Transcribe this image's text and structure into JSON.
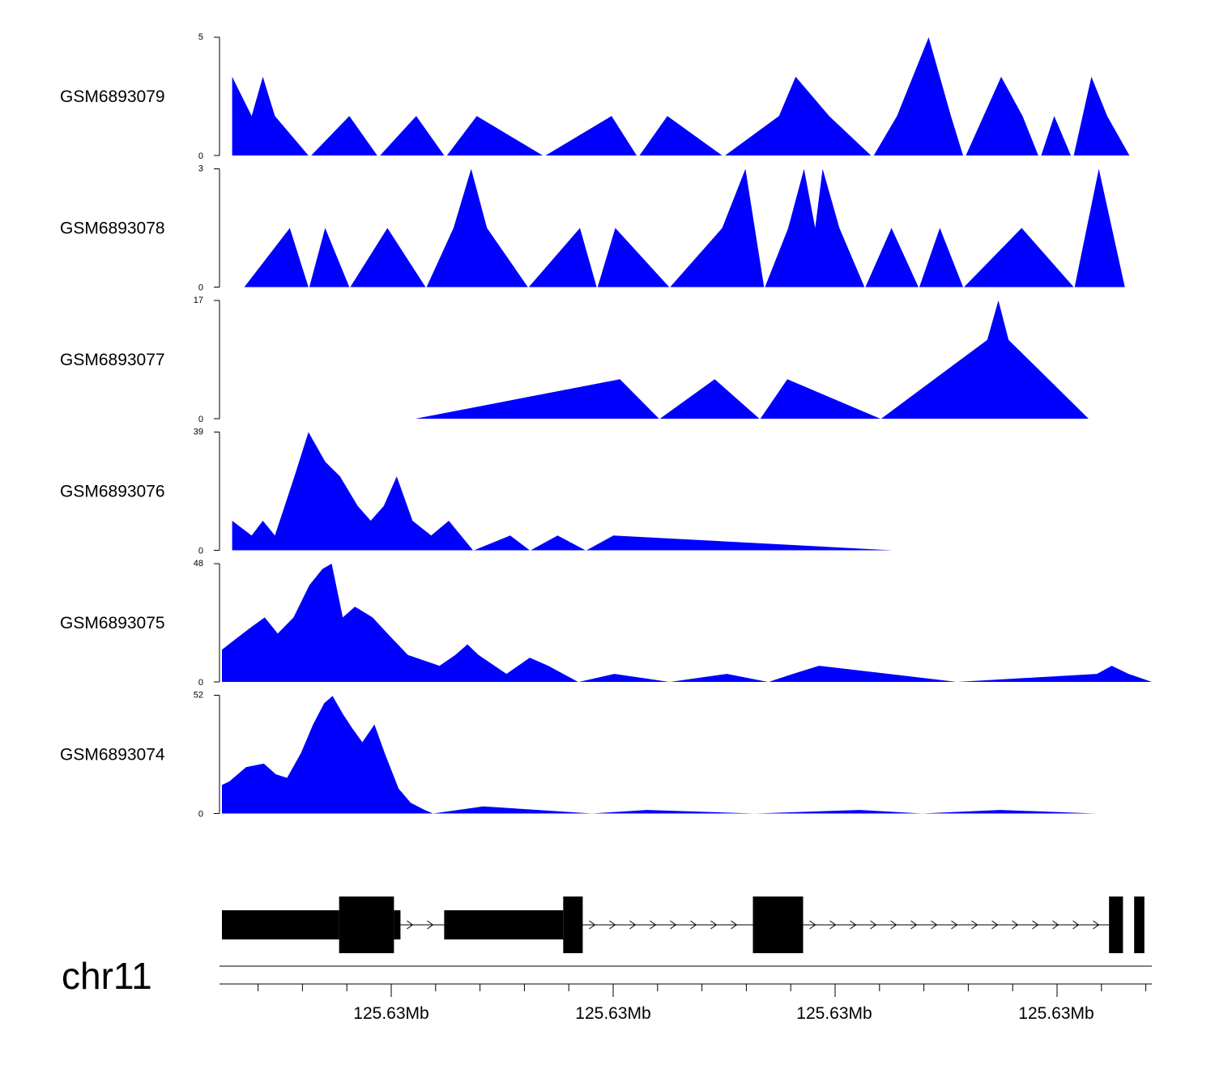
{
  "chart_data": {
    "type": "area",
    "genome": {
      "chromosome": "chr11",
      "axis_tick_labels": [
        "125.63Mb",
        "125.63Mb",
        "125.63Mb",
        "125.63Mb"
      ]
    },
    "tracks": [
      {
        "name": "GSM6893079",
        "ylim": [
          0,
          5
        ],
        "y_tick_labels": [
          "0",
          "5"
        ],
        "segments": [
          [
            [
              0.011,
              0
            ],
            [
              0.011,
              3.33
            ],
            [
              0.032,
              1.67
            ],
            [
              0.044,
              3.33
            ],
            [
              0.057,
              1.67
            ],
            [
              0.093,
              0
            ]
          ],
          [
            [
              0.096,
              0
            ],
            [
              0.137,
              1.67
            ],
            [
              0.167,
              0
            ]
          ],
          [
            [
              0.17,
              0
            ],
            [
              0.209,
              1.67
            ],
            [
              0.239,
              0
            ]
          ],
          [
            [
              0.242,
              0
            ],
            [
              0.274,
              1.67
            ],
            [
              0.345,
              0
            ]
          ],
          [
            [
              0.348,
              0
            ],
            [
              0.419,
              1.67
            ],
            [
              0.446,
              0
            ]
          ],
          [
            [
              0.449,
              0
            ],
            [
              0.479,
              1.67
            ],
            [
              0.538,
              0
            ]
          ],
          [
            [
              0.541,
              0
            ],
            [
              0.599,
              1.67
            ],
            [
              0.617,
              3.33
            ],
            [
              0.653,
              1.67
            ],
            [
              0.698,
              0
            ]
          ],
          [
            [
              0.701,
              0
            ],
            [
              0.726,
              1.67
            ],
            [
              0.76,
              5
            ],
            [
              0.784,
              1.67
            ],
            [
              0.797,
              0
            ]
          ],
          [
            [
              0.8,
              0
            ],
            [
              0.838,
              3.33
            ],
            [
              0.861,
              1.67
            ],
            [
              0.878,
              0
            ]
          ],
          [
            [
              0.881,
              0
            ],
            [
              0.895,
              1.67
            ],
            [
              0.913,
              0
            ]
          ],
          [
            [
              0.916,
              0
            ],
            [
              0.935,
              3.33
            ],
            [
              0.952,
              1.67
            ],
            [
              0.976,
              0
            ]
          ]
        ]
      },
      {
        "name": "GSM6893078",
        "ylim": [
          0,
          3
        ],
        "y_tick_labels": [
          "0",
          "3"
        ],
        "segments": [
          [
            [
              0.024,
              0
            ],
            [
              0.073,
              1.5
            ],
            [
              0.093,
              0
            ]
          ],
          [
            [
              0.094,
              0
            ],
            [
              0.111,
              1.5
            ],
            [
              0.137,
              0
            ]
          ],
          [
            [
              0.138,
              0
            ],
            [
              0.178,
              1.5
            ],
            [
              0.219,
              0
            ]
          ],
          [
            [
              0.22,
              0
            ],
            [
              0.249,
              1.5
            ],
            [
              0.268,
              3
            ],
            [
              0.285,
              1.5
            ],
            [
              0.329,
              0
            ]
          ],
          [
            [
              0.33,
              0
            ],
            [
              0.385,
              1.5
            ],
            [
              0.403,
              0
            ]
          ],
          [
            [
              0.404,
              0
            ],
            [
              0.423,
              1.5
            ],
            [
              0.481,
              0
            ]
          ],
          [
            [
              0.482,
              0
            ],
            [
              0.538,
              1.5
            ],
            [
              0.563,
              3
            ],
            [
              0.583,
              0
            ]
          ],
          [
            [
              0.584,
              0
            ],
            [
              0.609,
              1.5
            ],
            [
              0.626,
              3
            ],
            [
              0.638,
              1.5
            ],
            [
              0.646,
              3
            ],
            [
              0.664,
              1.5
            ],
            [
              0.691,
              0
            ]
          ],
          [
            [
              0.692,
              0
            ],
            [
              0.72,
              1.5
            ],
            [
              0.749,
              0
            ]
          ],
          [
            [
              0.75,
              0
            ],
            [
              0.772,
              1.5
            ],
            [
              0.797,
              0
            ]
          ],
          [
            [
              0.798,
              0
            ],
            [
              0.86,
              1.5
            ],
            [
              0.916,
              0
            ]
          ],
          [
            [
              0.917,
              0
            ],
            [
              0.943,
              3
            ],
            [
              0.971,
              0
            ]
          ]
        ]
      },
      {
        "name": "GSM6893077",
        "ylim": [
          0,
          17
        ],
        "y_tick_labels": [
          "0",
          "17"
        ],
        "segments": [
          [
            [
              0.208,
              0
            ],
            [
              0.428,
              5.67
            ],
            [
              0.47,
              0
            ]
          ],
          [
            [
              0.471,
              0
            ],
            [
              0.53,
              5.67
            ],
            [
              0.578,
              0
            ]
          ],
          [
            [
              0.579,
              0
            ],
            [
              0.608,
              5.67
            ],
            [
              0.708,
              0
            ]
          ],
          [
            [
              0.709,
              0
            ],
            [
              0.823,
              11.33
            ],
            [
              0.835,
              17
            ],
            [
              0.846,
              11.33
            ],
            [
              0.932,
              0
            ]
          ]
        ]
      },
      {
        "name": "GSM6893076",
        "ylim": [
          0,
          39
        ],
        "y_tick_labels": [
          "0",
          "39"
        ],
        "segments": [
          [
            [
              0.011,
              0
            ],
            [
              0.011,
              9.75
            ],
            [
              0.032,
              4.88
            ],
            [
              0.044,
              9.75
            ],
            [
              0.057,
              4.88
            ],
            [
              0.078,
              24.38
            ],
            [
              0.093,
              39
            ],
            [
              0.111,
              29.25
            ],
            [
              0.127,
              24.38
            ],
            [
              0.146,
              14.63
            ],
            [
              0.16,
              9.75
            ],
            [
              0.174,
              14.63
            ],
            [
              0.188,
              24.38
            ],
            [
              0.205,
              9.75
            ],
            [
              0.225,
              4.88
            ],
            [
              0.244,
              9.75
            ],
            [
              0.27,
              0
            ]
          ],
          [
            [
              0.271,
              0
            ],
            [
              0.31,
              4.88
            ],
            [
              0.331,
              0
            ]
          ],
          [
            [
              0.332,
              0
            ],
            [
              0.361,
              4.88
            ],
            [
              0.391,
              0
            ]
          ],
          [
            [
              0.392,
              0
            ],
            [
              0.421,
              4.88
            ],
            [
              0.721,
              0
            ]
          ]
        ]
      },
      {
        "name": "GSM6893075",
        "ylim": [
          0,
          48
        ],
        "y_tick_labels": [
          "0",
          "48"
        ],
        "segments": [
          [
            [
              0.0,
              0
            ],
            [
              0.0,
              13.09
            ],
            [
              0.015,
              17.45
            ],
            [
              0.03,
              21.82
            ],
            [
              0.046,
              26.18
            ],
            [
              0.06,
              19.64
            ],
            [
              0.077,
              26.18
            ],
            [
              0.094,
              39.27
            ],
            [
              0.108,
              45.82
            ],
            [
              0.118,
              48
            ],
            [
              0.13,
              26.18
            ],
            [
              0.143,
              30.55
            ],
            [
              0.162,
              26.18
            ],
            [
              0.178,
              19.64
            ],
            [
              0.2,
              10.91
            ],
            [
              0.234,
              6.55
            ],
            [
              0.251,
              10.91
            ],
            [
              0.264,
              15.27
            ],
            [
              0.276,
              10.91
            ],
            [
              0.306,
              3.27
            ],
            [
              0.331,
              9.82
            ],
            [
              0.351,
              6.55
            ],
            [
              0.383,
              0
            ]
          ],
          [
            [
              0.384,
              0
            ],
            [
              0.422,
              3.27
            ],
            [
              0.481,
              0
            ]
          ],
          [
            [
              0.482,
              0
            ],
            [
              0.543,
              3.27
            ],
            [
              0.587,
              0
            ]
          ],
          [
            [
              0.588,
              0
            ],
            [
              0.614,
              3.27
            ],
            [
              0.642,
              6.55
            ],
            [
              0.79,
              0
            ]
          ],
          [
            [
              0.791,
              0
            ],
            [
              0.941,
              3.27
            ],
            [
              0.957,
              6.55
            ],
            [
              0.975,
              3.27
            ],
            [
              1.0,
              0
            ]
          ]
        ]
      },
      {
        "name": "GSM6893074",
        "ylim": [
          0,
          52
        ],
        "y_tick_labels": [
          "0",
          "52"
        ],
        "segments": [
          [
            [
              0.0,
              0
            ],
            [
              0.0,
              12.53
            ],
            [
              0.008,
              14.09
            ],
            [
              0.026,
              20.36
            ],
            [
              0.045,
              21.93
            ],
            [
              0.058,
              17.23
            ],
            [
              0.07,
              15.66
            ],
            [
              0.085,
              26.63
            ],
            [
              0.098,
              39.16
            ],
            [
              0.11,
              48.55
            ],
            [
              0.119,
              51.69
            ],
            [
              0.13,
              43.86
            ],
            [
              0.14,
              37.59
            ],
            [
              0.151,
              31.33
            ],
            [
              0.164,
              39.16
            ],
            [
              0.175,
              26.63
            ],
            [
              0.19,
              10.97
            ],
            [
              0.203,
              4.7
            ],
            [
              0.218,
              1.57
            ],
            [
              0.227,
              0
            ],
            [
              0.281,
              3.13
            ],
            [
              0.398,
              0
            ],
            [
              0.457,
              1.57
            ],
            [
              0.573,
              0
            ],
            [
              0.686,
              1.57
            ],
            [
              0.753,
              0
            ],
            [
              0.837,
              1.57
            ],
            [
              0.94,
              0
            ]
          ]
        ]
      }
    ],
    "gene_model": {
      "blocks": [
        [
          0.0,
          0.126,
          "utr"
        ],
        [
          0.126,
          0.185,
          "cds"
        ],
        [
          0.185,
          0.192,
          "utr"
        ],
        [
          0.239,
          0.367,
          "utr"
        ],
        [
          0.367,
          0.388,
          "cds"
        ],
        [
          0.571,
          0.625,
          "cds"
        ],
        [
          0.954,
          0.969,
          "cds"
        ],
        [
          0.981,
          0.992,
          "cds"
        ]
      ],
      "intron_ranges": [
        [
          0.192,
          0.239
        ],
        [
          0.388,
          0.571
        ],
        [
          0.625,
          0.954
        ]
      ],
      "strand": "+"
    }
  },
  "colors": {
    "signal": "#0000ff",
    "gene": "#000000",
    "axis": "#000000",
    "background": "#ffffff"
  }
}
